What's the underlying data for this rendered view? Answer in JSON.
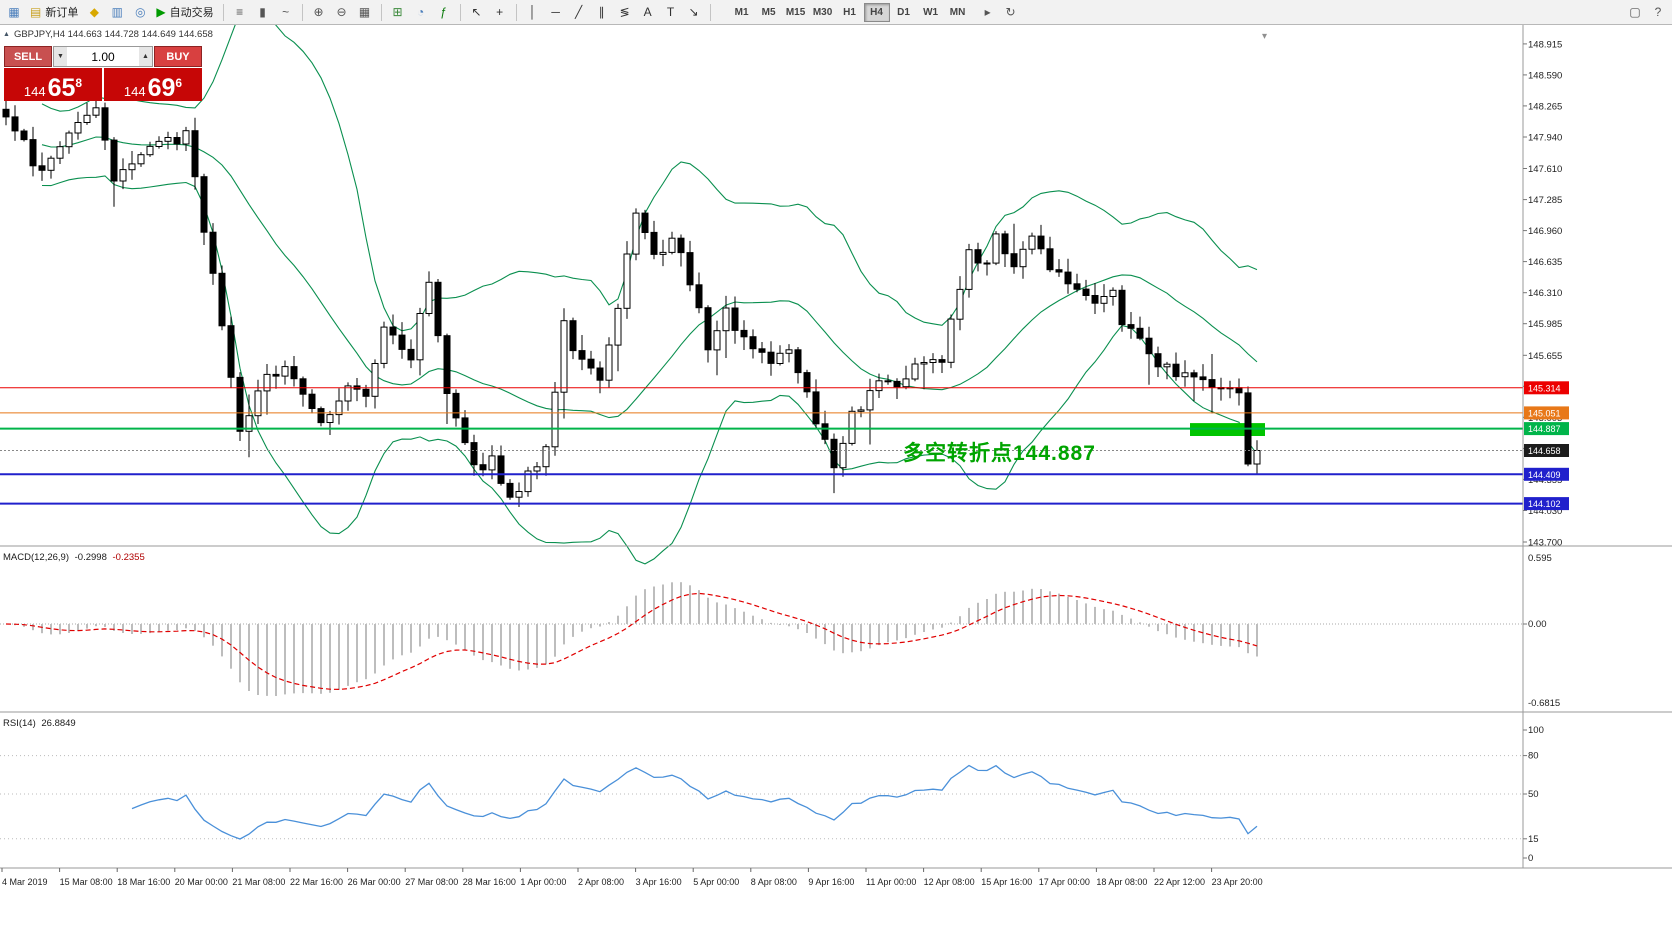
{
  "toolbar": {
    "items": [
      {
        "type": "icon",
        "name": "new-chart-icon",
        "glyph": "▦",
        "color": "#4a7ebb"
      },
      {
        "type": "labeled",
        "name": "new-order-button",
        "glyph": "▤",
        "color": "#c8a020",
        "label": "新订单"
      },
      {
        "type": "icon",
        "name": "profiles-icon",
        "glyph": "◆",
        "color": "#d8a800"
      },
      {
        "type": "icon",
        "name": "market-watch-icon",
        "glyph": "▥",
        "color": "#4a7ebb"
      },
      {
        "type": "icon",
        "name": "navigator-icon",
        "glyph": "◎",
        "color": "#4a7ebb"
      },
      {
        "type": "labeled",
        "name": "auto-trading-button",
        "glyph": "▶",
        "color": "#009a00",
        "label": "自动交易"
      },
      {
        "type": "sep"
      },
      {
        "type": "icon",
        "name": "bar-chart-icon",
        "glyph": "≡",
        "color": "#555555"
      },
      {
        "type": "icon",
        "name": "candlestick-chart-icon",
        "glyph": "▮",
        "color": "#555555"
      },
      {
        "type": "icon",
        "name": "line-chart-icon",
        "glyph": "~",
        "color": "#555555"
      },
      {
        "type": "sep"
      },
      {
        "type": "icon",
        "name": "zoom-in-icon",
        "glyph": "⊕",
        "color": "#555555"
      },
      {
        "type": "icon",
        "name": "zoom-out-icon",
        "glyph": "⊖",
        "color": "#555555"
      },
      {
        "type": "icon",
        "name": "tile-windows-icon",
        "glyph": "▦",
        "color": "#555555"
      },
      {
        "type": "sep"
      },
      {
        "type": "icon",
        "name": "chart-list-icon",
        "glyph": "⊞",
        "color": "#3c8a3c"
      },
      {
        "type": "icon",
        "name": "period-clock-icon",
        "glyph": "◔",
        "color": "#4a7ebb"
      },
      {
        "type": "icon",
        "name": "indicators-icon",
        "glyph": "ƒ",
        "color": "#0a7a0a"
      },
      {
        "type": "sep"
      },
      {
        "type": "icon",
        "name": "cursor-icon",
        "glyph": "↖",
        "color": "#333333"
      },
      {
        "type": "icon",
        "name": "crosshair-icon",
        "glyph": "+",
        "color": "#333333"
      },
      {
        "type": "sep"
      },
      {
        "type": "icon",
        "name": "vertical-line-icon",
        "glyph": "│",
        "color": "#333333"
      },
      {
        "type": "icon",
        "name": "horizontal-line-icon",
        "glyph": "─",
        "color": "#333333"
      },
      {
        "type": "icon",
        "name": "trendline-icon",
        "glyph": "╱",
        "color": "#333333"
      },
      {
        "type": "icon",
        "name": "channel-icon",
        "glyph": "∥",
        "color": "#333333"
      },
      {
        "type": "icon",
        "name": "fibonacci-icon",
        "glyph": "≶",
        "color": "#333333"
      },
      {
        "type": "icon",
        "name": "text-tool-icon",
        "glyph": "A",
        "color": "#333333"
      },
      {
        "type": "icon",
        "name": "label-tool-icon",
        "glyph": "T",
        "color": "#333333"
      },
      {
        "type": "icon",
        "name": "arrows-tool-icon",
        "glyph": "↘",
        "color": "#333333"
      },
      {
        "type": "sep"
      }
    ],
    "timeframes": [
      "M1",
      "M5",
      "M15",
      "M30",
      "H1",
      "H4",
      "D1",
      "W1",
      "MN"
    ],
    "active_timeframe": "H4",
    "right_items": [
      {
        "name": "chart-shift-icon",
        "glyph": "▸",
        "color": "#555555"
      },
      {
        "name": "auto-scroll-icon",
        "glyph": "↻",
        "color": "#555555"
      }
    ],
    "far_right_items": [
      {
        "name": "new-window-icon",
        "glyph": "▢",
        "color": "#555555"
      },
      {
        "name": "help-icon",
        "glyph": "?",
        "color": "#555555"
      }
    ]
  },
  "chart": {
    "symbol_info": "GBPJPY,H4  144.663 144.728 144.649 144.658",
    "trade_panel": {
      "sell_label": "SELL",
      "buy_label": "BUY",
      "volume": "1.00",
      "bid_main": "144",
      "bid_big": "65",
      "bid_sup": "8",
      "ask_main": "144",
      "ask_big": "69",
      "ask_sup": "6",
      "panel_color": "#c60606"
    },
    "annotation": {
      "text": "多空转折点144.887",
      "color": "#00a400"
    }
  },
  "chart_data": {
    "type": "candlestick",
    "symbol": "GBPJPY",
    "timeframe": "H4",
    "last_ohlc": {
      "open": 144.663,
      "high": 144.728,
      "low": 144.649,
      "close": 144.658
    },
    "y_range": [
      143.7,
      149.06
    ],
    "y_axis_labels": [
      "148.915",
      "148.590",
      "148.265",
      "147.940",
      "147.610",
      "147.285",
      "146.960",
      "146.635",
      "146.310",
      "145.985",
      "145.655",
      "145.330",
      "145.005",
      "144.680",
      "144.355",
      "144.030",
      "143.700"
    ],
    "x_axis_labels": [
      "4 Mar 2019",
      "15 Mar 08:00",
      "18 Mar 16:00",
      "20 Mar 00:00",
      "21 Mar 08:00",
      "22 Mar 16:00",
      "26 Mar 00:00",
      "27 Mar 08:00",
      "28 Mar 16:00",
      "1 Apr 00:00",
      "2 Apr 08:00",
      "3 Apr 16:00",
      "5 Apr 00:00",
      "8 Apr 08:00",
      "9 Apr 16:00",
      "11 Apr 00:00",
      "12 Apr 08:00",
      "15 Apr 16:00",
      "17 Apr 00:00",
      "18 Apr 08:00",
      "22 Apr 12:00",
      "23 Apr 20:00"
    ],
    "candle_count": 140,
    "price_path_anchors": [
      [
        0,
        148.15
      ],
      [
        4,
        147.55
      ],
      [
        10,
        148.3
      ],
      [
        12,
        147.45
      ],
      [
        16,
        147.85
      ],
      [
        20,
        147.95
      ],
      [
        23,
        146.5
      ],
      [
        26,
        144.9
      ],
      [
        29,
        145.4
      ],
      [
        31,
        145.55
      ],
      [
        35,
        144.95
      ],
      [
        38,
        145.3
      ],
      [
        40,
        145.2
      ],
      [
        42,
        146.0
      ],
      [
        45,
        145.65
      ],
      [
        47,
        146.4
      ],
      [
        49,
        145.2
      ],
      [
        52,
        144.45
      ],
      [
        54,
        144.6
      ],
      [
        56,
        144.1
      ],
      [
        58,
        144.4
      ],
      [
        60,
        144.65
      ],
      [
        62,
        145.95
      ],
      [
        64,
        145.55
      ],
      [
        66,
        145.4
      ],
      [
        68,
        146.1
      ],
      [
        70,
        147.2
      ],
      [
        72,
        146.7
      ],
      [
        74,
        146.9
      ],
      [
        77,
        146.2
      ],
      [
        78,
        145.75
      ],
      [
        80,
        146.1
      ],
      [
        82,
        145.8
      ],
      [
        85,
        145.6
      ],
      [
        87,
        145.7
      ],
      [
        90,
        145.0
      ],
      [
        92,
        144.5
      ],
      [
        94,
        145.0
      ],
      [
        97,
        145.35
      ],
      [
        99,
        145.3
      ],
      [
        102,
        145.6
      ],
      [
        104,
        145.55
      ],
      [
        105,
        146.0
      ],
      [
        107,
        146.75
      ],
      [
        109,
        146.6
      ],
      [
        110,
        146.9
      ],
      [
        112,
        146.65
      ],
      [
        114,
        146.9
      ],
      [
        116,
        146.6
      ],
      [
        118,
        146.4
      ],
      [
        119,
        146.3
      ],
      [
        121,
        146.2
      ],
      [
        123,
        146.35
      ],
      [
        124,
        146.0
      ],
      [
        126,
        145.85
      ],
      [
        128,
        145.55
      ],
      [
        130,
        145.45
      ],
      [
        133,
        145.4
      ],
      [
        135,
        145.35
      ],
      [
        137,
        145.3
      ],
      [
        138,
        144.55
      ],
      [
        139,
        144.658
      ]
    ],
    "overlays": {
      "bollinger_bands": {
        "period": 20,
        "deviation": 2,
        "color": "#0a8f4f"
      }
    },
    "horizontal_lines": [
      {
        "price": 145.314,
        "label": "145.314",
        "color": "#ec0000",
        "width": 1
      },
      {
        "price": 145.051,
        "label": "145.051",
        "color": "#e87818",
        "width": 1
      },
      {
        "price": 144.887,
        "label": "144.887",
        "color": "#00b44a",
        "width": 2
      },
      {
        "price": 144.409,
        "label": "144.409",
        "color": "#2020cc",
        "width": 2
      },
      {
        "price": 144.102,
        "label": "144.102",
        "color": "#2020cc",
        "width": 2
      }
    ],
    "current_price": {
      "value": 144.658,
      "label": "144.658",
      "box_color": "#1c1c1c"
    },
    "drawings": [
      {
        "type": "rectangle",
        "from_candle": 132,
        "to_candle": 140,
        "price_top": 144.945,
        "price_bottom": 144.81,
        "color": "#00c400"
      }
    ],
    "indicator_panels": [
      {
        "name": "MACD",
        "label": "MACD(12,26,9)",
        "values": [
          "-0.2998",
          "-0.2355"
        ],
        "axis_labels": [
          "0.595",
          "0.00",
          "-0.6815"
        ],
        "histogram_color": "#bdbdbd",
        "signal_color": "#e00000"
      },
      {
        "name": "RSI",
        "label": "RSI(14)",
        "value": "26.8849",
        "axis_labels": [
          "100",
          "80",
          "50",
          "15",
          "0"
        ],
        "levels": [
          80,
          50,
          15
        ],
        "line_color": "#4a90d9"
      }
    ]
  }
}
